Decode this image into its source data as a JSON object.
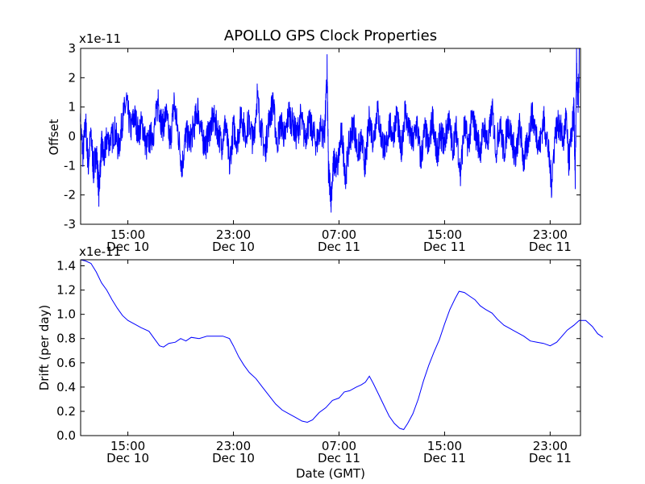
{
  "title": "APOLLO GPS Clock Properties",
  "line_color": "#0000ff",
  "chart_data": [
    {
      "type": "line",
      "title": "APOLLO GPS Clock Properties",
      "ylabel": "Offset",
      "xlabel": "",
      "offset_text": "x1e-11",
      "ylim": [
        -3,
        3
      ],
      "yticks": [
        "-3",
        "-2",
        "-1",
        "0",
        "1",
        "2",
        "3"
      ],
      "xlim": [
        "Dec 10 11:25",
        "Dec 12 00:00"
      ],
      "xticks": [
        {
          "time": "15:00",
          "date": "Dec 10"
        },
        {
          "time": "23:00",
          "date": "Dec 10"
        },
        {
          "time": "07:00",
          "date": "Dec 11"
        },
        {
          "time": "15:00",
          "date": "Dec 11"
        },
        {
          "time": "23:00",
          "date": "Dec 11"
        }
      ],
      "grid": false,
      "series": [
        {
          "note": "high-frequency noisy residual; envelope samples (hours since Dec 10 00:00, value x1e-11)",
          "points": [
            [
              11.4,
              0.5
            ],
            [
              11.6,
              -0.8
            ],
            [
              11.8,
              0.6
            ],
            [
              12.0,
              -1.3
            ],
            [
              12.2,
              0.2
            ],
            [
              12.4,
              -1.6
            ],
            [
              12.6,
              -0.6
            ],
            [
              12.8,
              -2.4
            ],
            [
              13.0,
              -0.4
            ],
            [
              13.2,
              -1.0
            ],
            [
              13.4,
              -0.1
            ],
            [
              13.7,
              -0.3
            ],
            [
              14.0,
              0.3
            ],
            [
              14.3,
              -0.6
            ],
            [
              14.6,
              0.8
            ],
            [
              14.9,
              1.5
            ],
            [
              15.2,
              0.3
            ],
            [
              15.5,
              0.9
            ],
            [
              15.8,
              0.2
            ],
            [
              16.1,
              0.6
            ],
            [
              16.4,
              -0.5
            ],
            [
              16.7,
              -0.1
            ],
            [
              17.0,
              0.3
            ],
            [
              17.3,
              1.6
            ],
            [
              17.6,
              0.4
            ],
            [
              17.9,
              1.0
            ],
            [
              18.2,
              -0.3
            ],
            [
              18.5,
              1.5
            ],
            [
              18.8,
              0.2
            ],
            [
              19.1,
              -1.4
            ],
            [
              19.4,
              0.1
            ],
            [
              19.7,
              -0.2
            ],
            [
              20.0,
              0.4
            ],
            [
              20.3,
              1.3
            ],
            [
              20.6,
              0.0
            ],
            [
              20.9,
              -0.4
            ],
            [
              21.2,
              0.3
            ],
            [
              21.5,
              0.8
            ],
            [
              21.8,
              0.3
            ],
            [
              22.1,
              -0.4
            ],
            [
              22.4,
              0.6
            ],
            [
              22.7,
              -1.3
            ],
            [
              23.0,
              0.4
            ],
            [
              23.3,
              -0.2
            ],
            [
              23.6,
              1.0
            ],
            [
              23.9,
              0.1
            ],
            [
              24.2,
              0.7
            ],
            [
              24.5,
              -0.3
            ],
            [
              24.8,
              1.8
            ],
            [
              25.1,
              0.3
            ],
            [
              25.4,
              -0.7
            ],
            [
              25.7,
              0.8
            ],
            [
              26.0,
              1.5
            ],
            [
              26.3,
              -0.3
            ],
            [
              26.6,
              0.7
            ],
            [
              26.9,
              -0.1
            ],
            [
              27.2,
              1.1
            ],
            [
              27.5,
              0.5
            ],
            [
              27.8,
              0.0
            ],
            [
              28.1,
              0.9
            ],
            [
              28.4,
              -0.1
            ],
            [
              28.7,
              0.6
            ],
            [
              29.0,
              0.2
            ],
            [
              29.3,
              -0.3
            ],
            [
              29.6,
              0.4
            ],
            [
              29.9,
              0.0
            ],
            [
              30.1,
              2.8
            ],
            [
              30.2,
              -1.6
            ],
            [
              30.4,
              -2.6
            ],
            [
              30.6,
              -1.2
            ],
            [
              30.9,
              -1.3
            ],
            [
              31.2,
              0.2
            ],
            [
              31.5,
              -1.8
            ],
            [
              31.8,
              -0.2
            ],
            [
              32.1,
              0.6
            ],
            [
              32.4,
              -0.7
            ],
            [
              32.7,
              -0.3
            ],
            [
              33.0,
              -1.3
            ],
            [
              33.3,
              0.8
            ],
            [
              33.6,
              -0.2
            ],
            [
              33.9,
              1.2
            ],
            [
              34.2,
              0.0
            ],
            [
              34.5,
              -0.7
            ],
            [
              34.8,
              0.5
            ],
            [
              35.1,
              0.1
            ],
            [
              35.4,
              1.0
            ],
            [
              35.7,
              -0.8
            ],
            [
              36.0,
              1.2
            ],
            [
              36.3,
              0.2
            ],
            [
              36.6,
              -0.3
            ],
            [
              36.9,
              0.6
            ],
            [
              37.2,
              -1.1
            ],
            [
              37.5,
              0.3
            ],
            [
              37.8,
              -0.5
            ],
            [
              38.1,
              0.9
            ],
            [
              38.4,
              -0.9
            ],
            [
              38.7,
              0.1
            ],
            [
              39.0,
              -0.3
            ],
            [
              39.3,
              0.8
            ],
            [
              39.6,
              -0.5
            ],
            [
              39.9,
              0.3
            ],
            [
              40.2,
              -1.7
            ],
            [
              40.5,
              0.5
            ],
            [
              40.8,
              -0.4
            ],
            [
              41.1,
              0.9
            ],
            [
              41.4,
              0.0
            ],
            [
              41.7,
              -0.6
            ],
            [
              42.0,
              0.4
            ],
            [
              42.3,
              -0.4
            ],
            [
              42.6,
              1.2
            ],
            [
              42.9,
              -0.6
            ],
            [
              43.2,
              0.6
            ],
            [
              43.5,
              -0.8
            ],
            [
              43.8,
              0.7
            ],
            [
              44.1,
              -0.1
            ],
            [
              44.4,
              -1.0
            ],
            [
              44.7,
              0.5
            ],
            [
              45.0,
              -1.2
            ],
            [
              45.3,
              -0.3
            ],
            [
              45.6,
              1.0
            ],
            [
              45.9,
              0.3
            ],
            [
              46.2,
              -0.5
            ],
            [
              46.5,
              0.8
            ],
            [
              46.8,
              -0.3
            ],
            [
              47.1,
              -2.1
            ],
            [
              47.4,
              0.2
            ],
            [
              47.7,
              0.6
            ],
            [
              48.0,
              -0.3
            ],
            [
              48.2,
              0.9
            ],
            [
              48.4,
              -1.2
            ],
            [
              48.6,
              -0.1
            ],
            [
              48.8,
              1.2
            ],
            [
              48.9,
              -1.8
            ],
            [
              49.0,
              3.0
            ],
            [
              49.1,
              1.4
            ],
            [
              49.2,
              3.0
            ]
          ]
        }
      ]
    },
    {
      "type": "line",
      "title": "",
      "ylabel": "Drift (per day)",
      "xlabel": "Date (GMT)",
      "offset_text": "x1e-11",
      "ylim": [
        0.0,
        1.45
      ],
      "yticks": [
        "0.0",
        "0.2",
        "0.4",
        "0.6",
        "0.8",
        "1.0",
        "1.2",
        "1.4"
      ],
      "xlim": [
        "Dec 10 11:25",
        "Dec 12 00:00"
      ],
      "xticks": [
        {
          "time": "15:00",
          "date": "Dec 10"
        },
        {
          "time": "23:00",
          "date": "Dec 10"
        },
        {
          "time": "07:00",
          "date": "Dec 11"
        },
        {
          "time": "15:00",
          "date": "Dec 11"
        },
        {
          "time": "23:00",
          "date": "Dec 11"
        }
      ],
      "grid": false,
      "series": [
        {
          "note": "hours since Dec 10 00:00, drift x1e-11 per day",
          "points": [
            [
              11.4,
              1.45
            ],
            [
              11.8,
              1.44
            ],
            [
              12.2,
              1.42
            ],
            [
              12.6,
              1.35
            ],
            [
              13.0,
              1.26
            ],
            [
              13.4,
              1.2
            ],
            [
              13.8,
              1.12
            ],
            [
              14.2,
              1.05
            ],
            [
              14.6,
              0.99
            ],
            [
              15.0,
              0.95
            ],
            [
              15.5,
              0.92
            ],
            [
              16.0,
              0.89
            ],
            [
              16.6,
              0.86
            ],
            [
              17.0,
              0.8
            ],
            [
              17.4,
              0.74
            ],
            [
              17.7,
              0.73
            ],
            [
              18.1,
              0.76
            ],
            [
              18.6,
              0.77
            ],
            [
              19.0,
              0.8
            ],
            [
              19.4,
              0.78
            ],
            [
              19.8,
              0.81
            ],
            [
              20.4,
              0.8
            ],
            [
              21.0,
              0.82
            ],
            [
              21.6,
              0.82
            ],
            [
              22.2,
              0.82
            ],
            [
              22.7,
              0.8
            ],
            [
              23.0,
              0.74
            ],
            [
              23.4,
              0.65
            ],
            [
              23.8,
              0.58
            ],
            [
              24.2,
              0.52
            ],
            [
              24.7,
              0.47
            ],
            [
              25.2,
              0.4
            ],
            [
              25.7,
              0.33
            ],
            [
              26.2,
              0.26
            ],
            [
              26.7,
              0.21
            ],
            [
              27.2,
              0.18
            ],
            [
              27.7,
              0.15
            ],
            [
              28.2,
              0.12
            ],
            [
              28.6,
              0.11
            ],
            [
              29.0,
              0.13
            ],
            [
              29.5,
              0.19
            ],
            [
              30.0,
              0.23
            ],
            [
              30.5,
              0.29
            ],
            [
              31.0,
              0.31
            ],
            [
              31.4,
              0.36
            ],
            [
              31.8,
              0.37
            ],
            [
              32.3,
              0.4
            ],
            [
              32.7,
              0.42
            ],
            [
              33.0,
              0.44
            ],
            [
              33.3,
              0.49
            ],
            [
              33.6,
              0.43
            ],
            [
              34.0,
              0.34
            ],
            [
              34.4,
              0.25
            ],
            [
              34.8,
              0.16
            ],
            [
              35.2,
              0.1
            ],
            [
              35.6,
              0.06
            ],
            [
              35.9,
              0.05
            ],
            [
              36.2,
              0.1
            ],
            [
              36.6,
              0.18
            ],
            [
              37.0,
              0.3
            ],
            [
              37.4,
              0.45
            ],
            [
              37.8,
              0.58
            ],
            [
              38.2,
              0.69
            ],
            [
              38.6,
              0.79
            ],
            [
              39.0,
              0.92
            ],
            [
              39.4,
              1.04
            ],
            [
              39.8,
              1.13
            ],
            [
              40.1,
              1.19
            ],
            [
              40.5,
              1.18
            ],
            [
              40.9,
              1.15
            ],
            [
              41.3,
              1.12
            ],
            [
              41.7,
              1.07
            ],
            [
              42.1,
              1.04
            ],
            [
              42.6,
              1.01
            ],
            [
              43.0,
              0.96
            ],
            [
              43.5,
              0.91
            ],
            [
              44.0,
              0.88
            ],
            [
              44.5,
              0.85
            ],
            [
              45.0,
              0.82
            ],
            [
              45.5,
              0.78
            ],
            [
              46.0,
              0.77
            ],
            [
              46.5,
              0.76
            ],
            [
              47.0,
              0.74
            ],
            [
              47.5,
              0.77
            ],
            [
              47.9,
              0.82
            ],
            [
              48.3,
              0.87
            ],
            [
              48.8,
              0.91
            ],
            [
              49.2,
              0.95
            ],
            [
              49.7,
              0.95
            ],
            [
              50.2,
              0.9
            ],
            [
              50.6,
              0.84
            ],
            [
              51.0,
              0.81
            ]
          ]
        }
      ]
    }
  ]
}
